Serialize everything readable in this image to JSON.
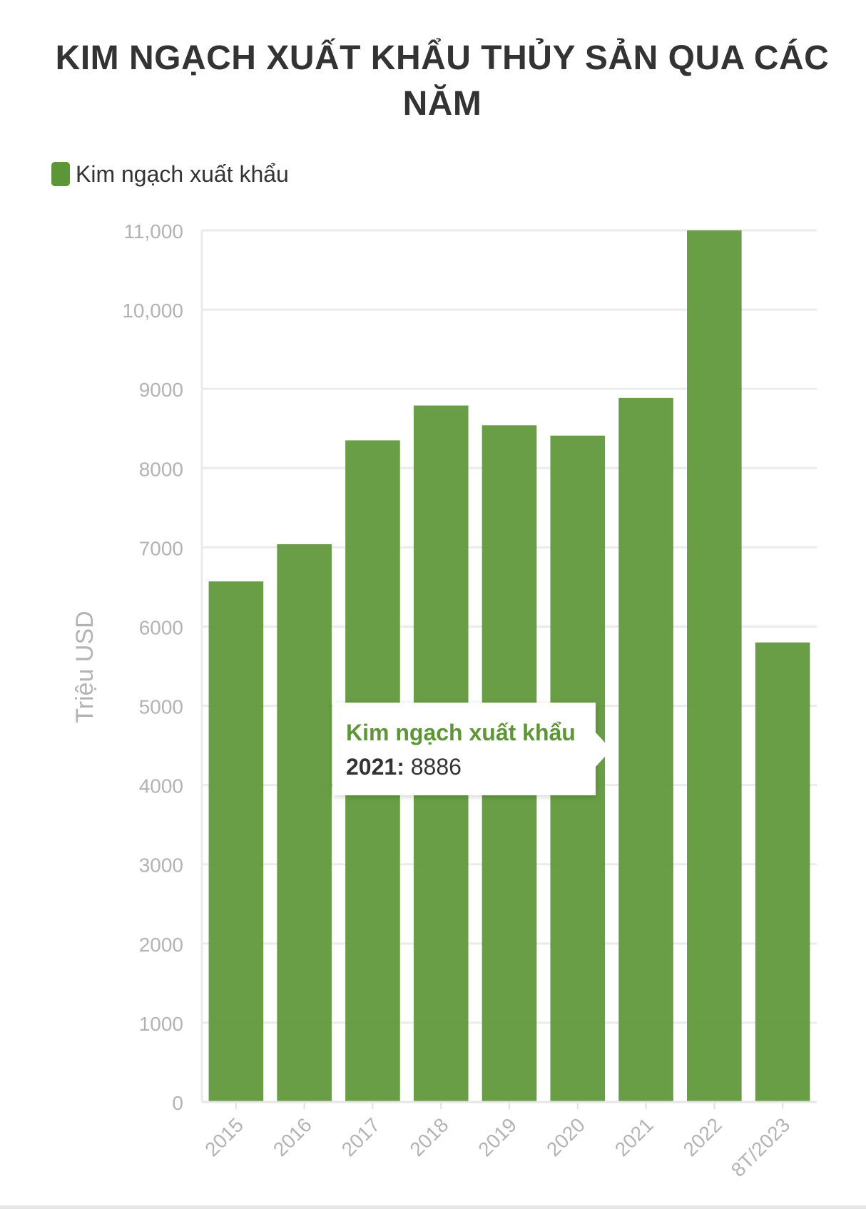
{
  "chart_data": {
    "type": "bar",
    "title": "KIM NGẠCH XUẤT KHẨU THỦY SẢN QUA CÁC NĂM",
    "xlabel": "",
    "ylabel": "Triệu USD",
    "categories": [
      "2015",
      "2016",
      "2017",
      "2018",
      "2019",
      "2020",
      "2021",
      "2022",
      "8T/2023"
    ],
    "series": [
      {
        "name": "Kim ngạch xuất khẩu",
        "color": "#5d9636",
        "values": [
          6570,
          7040,
          8350,
          8790,
          8540,
          8410,
          8886,
          11000,
          5800
        ]
      }
    ],
    "ylim": [
      0,
      11000
    ],
    "yticks": [
      0,
      1000,
      2000,
      3000,
      4000,
      5000,
      6000,
      7000,
      8000,
      9000,
      10000,
      11000
    ],
    "ytick_labels": [
      "0",
      "1000",
      "2000",
      "3000",
      "4000",
      "5000",
      "6000",
      "7000",
      "8000",
      "9000",
      "10,000",
      "11,000"
    ],
    "grid": true,
    "legend": "top-left"
  },
  "tooltip": {
    "series": "Kim ngạch xuất khẩu",
    "category": "2021:",
    "value": "8886"
  }
}
